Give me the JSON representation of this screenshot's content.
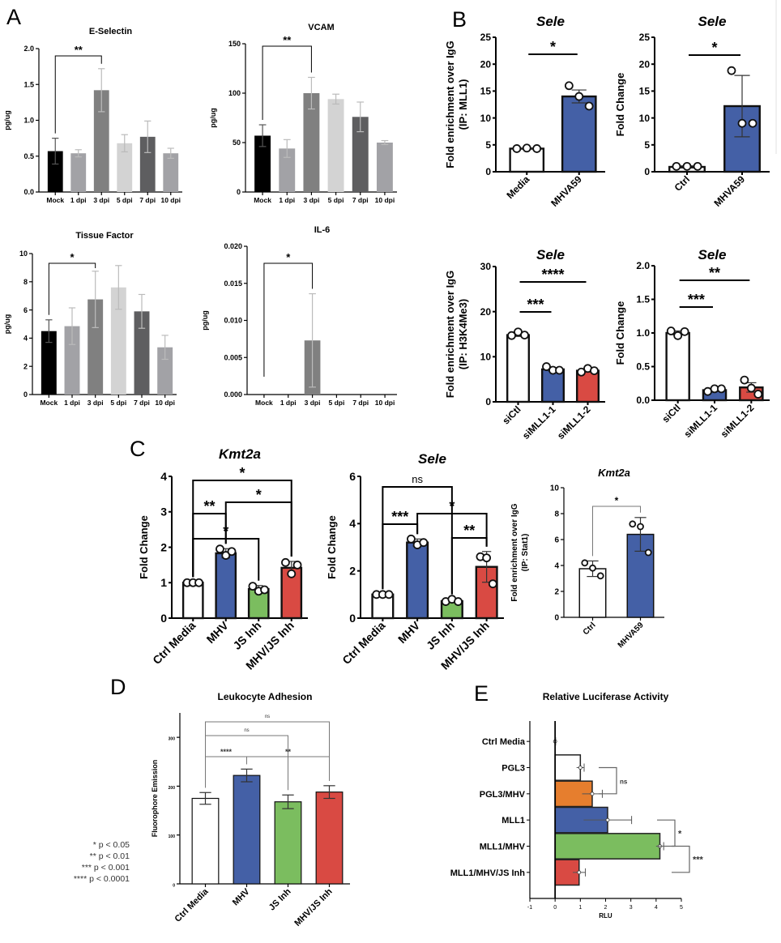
{
  "panel_letters": [
    "A",
    "B",
    "C",
    "D",
    "E"
  ],
  "p_value_legend": [
    "* p < 0.05",
    "** p < 0.01",
    "*** p < 0.001",
    "**** p < 0.0001"
  ],
  "chart_data": [
    {
      "id": "a1",
      "type": "bar",
      "title": "E-Selectin",
      "ylabel": [
        "pg/ug"
      ],
      "categories": [
        "Mock",
        "1 dpi",
        "3 dpi",
        "5 dpi",
        "7 dpi",
        "10 dpi"
      ],
      "values": [
        0.57,
        0.54,
        1.42,
        0.68,
        0.77,
        0.54
      ],
      "errors": [
        0.18,
        0.05,
        0.3,
        0.12,
        0.22,
        0.07
      ],
      "colors": [
        "#000000",
        "#a2a2a6",
        "#808080",
        "#d3d3d3",
        "#5e5e60",
        "#a2a2a6"
      ],
      "ylim": [
        0,
        2
      ],
      "yticks": [
        0,
        0.5,
        1,
        1.5,
        2
      ],
      "ytick_labels": [
        "0.0",
        "0.5",
        "1.0",
        "1.5",
        "2.0"
      ],
      "significance": [
        {
          "from": 0,
          "to": 2,
          "label": "**"
        }
      ]
    },
    {
      "id": "a2",
      "type": "bar",
      "title": "VCAM",
      "ylabel": [
        "pg/ug"
      ],
      "categories": [
        "Mock",
        "1 dpi",
        "3 dpi",
        "5 dpi",
        "7 dpi",
        "10 dpi"
      ],
      "values": [
        57,
        44,
        100,
        94,
        76,
        50
      ],
      "errors": [
        11,
        9,
        16,
        5,
        15,
        2
      ],
      "colors": [
        "#000000",
        "#a2a2a6",
        "#808080",
        "#d3d3d3",
        "#5e5e60",
        "#a2a2a6"
      ],
      "ylim": [
        0,
        150
      ],
      "yticks": [
        0,
        50,
        100,
        150
      ],
      "ytick_labels": [
        "0",
        "50",
        "100",
        "150"
      ],
      "significance": [
        {
          "from": 0,
          "to": 2,
          "label": "**"
        }
      ]
    },
    {
      "id": "a3",
      "type": "bar",
      "title": "Tissue Factor",
      "ylabel": [
        "pg/ug"
      ],
      "categories": [
        "Mock",
        "1 dpi",
        "3 dpi",
        "5 dpi",
        "7 dpi",
        "10 dpi"
      ],
      "values": [
        4.5,
        4.85,
        6.75,
        7.6,
        5.9,
        3.35
      ],
      "errors": [
        0.8,
        1.3,
        2.0,
        1.55,
        1.2,
        0.85
      ],
      "colors": [
        "#000000",
        "#a2a2a6",
        "#808080",
        "#d3d3d3",
        "#5e5e60",
        "#a2a2a6"
      ],
      "ylim": [
        0,
        10
      ],
      "yticks": [
        0,
        2,
        4,
        6,
        8,
        10
      ],
      "ytick_labels": [
        "0",
        "2",
        "4",
        "6",
        "8",
        "10"
      ],
      "significance": [
        {
          "from": 0,
          "to": 2,
          "label": "*"
        }
      ]
    },
    {
      "id": "a4",
      "type": "bar",
      "title": "IL-6",
      "ylabel": [
        "pg/ug"
      ],
      "categories": [
        "Mock",
        "1 dpi",
        "3 dpi",
        "5 dpi",
        "7 dpi",
        "10 dpi"
      ],
      "values": [
        0,
        0,
        0.0073,
        0,
        0,
        0
      ],
      "errors": [
        0,
        0,
        0.0063,
        0,
        0,
        0
      ],
      "colors": [
        "#000000",
        "#a2a2a6",
        "#808080",
        "#d3d3d3",
        "#5e5e60",
        "#a2a2a6"
      ],
      "ylim": [
        0,
        0.02
      ],
      "yticks": [
        0,
        0.005,
        0.01,
        0.015,
        0.02
      ],
      "ytick_labels": [
        "0.000",
        "0.005",
        "0.010",
        "0.015",
        "0.020"
      ],
      "significance": [
        {
          "from": 0,
          "to": 2,
          "label": "*"
        }
      ]
    },
    {
      "id": "b1",
      "type": "bar",
      "title": "Sele",
      "ylabel": [
        "Fold enrichment over IgG",
        "(IP: MLL1)"
      ],
      "categories": [
        "Media",
        "MHVA59"
      ],
      "values": [
        4.3,
        14.0
      ],
      "errors": [
        0.1,
        1.2
      ],
      "points": [
        [
          4.3,
          4.4,
          4.3
        ],
        [
          16.0,
          14.0,
          12.2
        ]
      ],
      "colors": [
        "#ffffff",
        "#4460a6"
      ],
      "ylim": [
        0,
        25
      ],
      "yticks": [
        0,
        5,
        10,
        15,
        20,
        25
      ],
      "ytick_labels": [
        "0",
        "5",
        "10",
        "15",
        "20",
        "25"
      ],
      "significance": [
        {
          "from": 0,
          "to": 1,
          "label": "*"
        }
      ]
    },
    {
      "id": "b2",
      "type": "bar",
      "title": "Sele",
      "ylabel": [
        "Fold Change"
      ],
      "categories": [
        "Ctrl",
        "MHVA59"
      ],
      "values": [
        0.9,
        12.2
      ],
      "errors": [
        0.2,
        5.7
      ],
      "points": [
        [
          1.0,
          1.0,
          1.0
        ],
        [
          18.8,
          9.0,
          9.0
        ]
      ],
      "colors": [
        "#ffffff",
        "#4460a6"
      ],
      "ylim": [
        0,
        25
      ],
      "yticks": [
        0,
        5,
        10,
        15,
        20,
        25
      ],
      "ytick_labels": [
        "0",
        "5",
        "10",
        "15",
        "20",
        "25"
      ],
      "significance": [
        {
          "from": 0,
          "to": 1,
          "label": "*"
        }
      ]
    },
    {
      "id": "b3",
      "type": "bar",
      "title": "Sele",
      "ylabel": [
        "Fold enrichment over IgG",
        "(IP: H3K4Me3)"
      ],
      "categories": [
        "siCtl",
        "siMLL1-1",
        "siMLL1-2"
      ],
      "values": [
        14.8,
        7.2,
        6.9
      ],
      "errors": [
        0.3,
        0.4,
        0.3
      ],
      "points": [
        [
          14.7,
          15.5,
          14.8
        ],
        [
          7.8,
          7.0,
          7.0
        ],
        [
          6.6,
          7.4,
          6.9
        ]
      ],
      "colors": [
        "#ffffff",
        "#4460a6",
        "#d94a43"
      ],
      "ylim": [
        0,
        30
      ],
      "yticks": [
        0,
        10,
        20,
        30
      ],
      "ytick_labels": [
        "0",
        "10",
        "20",
        "30"
      ],
      "significance": [
        {
          "from": 0,
          "to": 1,
          "label": "***"
        },
        {
          "from": 0,
          "to": 2,
          "label": "****"
        }
      ]
    },
    {
      "id": "b4",
      "type": "bar",
      "title": "Sele",
      "ylabel": [
        "Fold Change"
      ],
      "categories": [
        "siCtl",
        "siMLL1-1",
        "siMLL1-2"
      ],
      "values": [
        1.0,
        0.15,
        0.19
      ],
      "errors": [
        0.03,
        0.02,
        0.07
      ],
      "points": [
        [
          1.03,
          0.96,
          1.02
        ],
        [
          0.13,
          0.17,
          0.17
        ],
        [
          0.3,
          0.18,
          0.09
        ]
      ],
      "colors": [
        "#ffffff",
        "#4460a6",
        "#d94a43"
      ],
      "ylim": [
        0,
        2
      ],
      "yticks": [
        0,
        0.5,
        1,
        1.5,
        2
      ],
      "ytick_labels": [
        "0.0",
        "0.5",
        "1.0",
        "1.5",
        "2.0"
      ],
      "significance": [
        {
          "from": 0,
          "to": 1,
          "label": "***"
        },
        {
          "from": 0,
          "to": 2,
          "label": "**"
        }
      ]
    },
    {
      "id": "c1",
      "type": "bar",
      "title": "Kmt2a",
      "ylabel": [
        "Fold Change"
      ],
      "categories": [
        "Ctrl Media",
        "MHV",
        "JS Inh",
        "MHV/JS Inh"
      ],
      "values": [
        1.0,
        1.83,
        0.82,
        1.42
      ],
      "errors": [
        0.02,
        0.13,
        0.1,
        0.18
      ],
      "points": [
        [
          1,
          1,
          1
        ],
        [
          1.95,
          1.77,
          1.88
        ],
        [
          0.9,
          0.76,
          0.8
        ],
        [
          1.57,
          1.25,
          1.5
        ]
      ],
      "colors": [
        "#ffffff",
        "#4460a6",
        "#7bbd5f",
        "#d94a43"
      ],
      "ylim": [
        0,
        4
      ],
      "yticks": [
        0,
        1,
        2,
        3,
        4
      ],
      "ytick_labels": [
        "0",
        "1",
        "2",
        "3",
        "4"
      ],
      "significance": [
        {
          "from": 0,
          "to": 3,
          "label": "*"
        },
        {
          "from": 1,
          "to": 3,
          "label": "*"
        },
        {
          "from": 0,
          "to": 1,
          "label": "**"
        },
        {
          "from": 0,
          "to": 2,
          "label": "*"
        }
      ]
    },
    {
      "id": "c2",
      "type": "bar",
      "title": "Sele",
      "ylabel": [
        "Fold Change"
      ],
      "categories": [
        "Ctrl Media",
        "MHV",
        "JS Inh",
        "MHV/JS Inh"
      ],
      "values": [
        1.0,
        3.2,
        0.72,
        2.17
      ],
      "errors": [
        0.02,
        0.15,
        0.05,
        0.65
      ],
      "points": [
        [
          1,
          1,
          1
        ],
        [
          3.35,
          3.1,
          3.2
        ],
        [
          0.7,
          0.8,
          0.7
        ],
        [
          2.6,
          2.55,
          1.45
        ]
      ],
      "colors": [
        "#ffffff",
        "#4460a6",
        "#7bbd5f",
        "#d94a43"
      ],
      "ylim": [
        0,
        6
      ],
      "yticks": [
        0,
        2,
        4,
        6
      ],
      "ytick_labels": [
        "0",
        "2",
        "4",
        "6"
      ],
      "significance": [
        {
          "from": 0,
          "to": 2,
          "label": "ns"
        },
        {
          "from": 1,
          "to": 3,
          "label": "*"
        },
        {
          "from": 0,
          "to": 1,
          "label": "***"
        },
        {
          "from": 2,
          "to": 3,
          "label": "**"
        }
      ]
    },
    {
      "id": "c3",
      "type": "bar",
      "title": "Kmt2a",
      "ylabel": [
        "Fold enrichment over IgG",
        "(IP: Stat1)"
      ],
      "categories": [
        "Ctrl",
        "MHVA59"
      ],
      "values": [
        3.75,
        6.4
      ],
      "errors": [
        0.6,
        1.3
      ],
      "points": [
        [
          4.2,
          3.8,
          3.2
        ],
        [
          7.2,
          7.0,
          5.0
        ]
      ],
      "colors": [
        "#ffffff",
        "#4460a6"
      ],
      "ylim": [
        0,
        10
      ],
      "yticks": [
        0,
        2,
        4,
        6,
        8,
        10
      ],
      "ytick_labels": [
        "0",
        "2",
        "4",
        "6",
        "8",
        "10"
      ],
      "significance": [
        {
          "from": 0,
          "to": 1,
          "label": "*"
        }
      ]
    },
    {
      "id": "d",
      "type": "bar",
      "title": "Leukocyte Adhesion",
      "ylabel": [
        "Fluorophore Emission"
      ],
      "categories": [
        "Ctrl Media",
        "MHV",
        "JS Inh",
        "MHV/JS Inh"
      ],
      "values": [
        175,
        222,
        168,
        188
      ],
      "errors": [
        12,
        13,
        14,
        13
      ],
      "colors": [
        "#ffffff",
        "#4460a6",
        "#7bbd5f",
        "#d94a43"
      ],
      "ylim": [
        0,
        350
      ],
      "yticks": [
        0,
        100,
        200,
        300
      ],
      "ytick_labels": [
        "0",
        "100",
        "200",
        "300"
      ],
      "significance": [
        {
          "from": 0,
          "to": 3,
          "label": "ns"
        },
        {
          "from": 0,
          "to": 2,
          "label": "ns"
        },
        {
          "from": 0,
          "to": 1,
          "label": "****"
        },
        {
          "from": 1,
          "to": 3,
          "label": "**"
        }
      ]
    },
    {
      "id": "e",
      "type": "bar",
      "orientation": "horizontal",
      "title": "Relative Luciferase Activity",
      "xlabel": "RLU",
      "categories": [
        "Ctrl Media",
        "PGL3",
        "PGL3/MHV",
        "MLL1",
        "MLL1/MHV",
        "MLL1/MHV/JS Inh"
      ],
      "values": [
        0,
        1.0,
        1.47,
        2.08,
        4.15,
        0.95
      ],
      "errors": [
        0.02,
        0.15,
        0.4,
        0.95,
        0.15,
        0.25
      ],
      "colors": [
        "#ffffff",
        "#ffffff",
        "#e67e2e",
        "#4460a6",
        "#7bbd5f",
        "#d94a43"
      ],
      "xlim": [
        -1,
        5
      ],
      "xticks": [
        -1,
        0,
        1,
        2,
        3,
        4,
        5
      ],
      "xtick_labels": [
        "-1",
        "0",
        "1",
        "2",
        "3",
        "4",
        "5"
      ],
      "significance": [
        {
          "from": 1,
          "to": 2,
          "label": "ns"
        },
        {
          "from": 3,
          "to": 4,
          "label": "*"
        },
        {
          "from": 4,
          "to": 5,
          "label": "***"
        }
      ]
    }
  ]
}
